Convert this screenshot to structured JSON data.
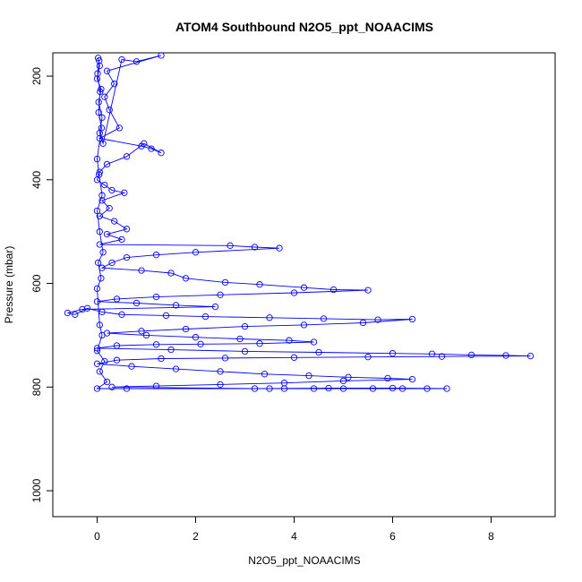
{
  "chart_data": {
    "type": "scatter",
    "title": "ATOM4 Southbound N2O5_ppt_NOAACIMS",
    "xlabel": "N2O5_ppt_NOAACIMS",
    "ylabel": "Pressure (mbar)",
    "xlim": [
      -0.9,
      9.3
    ],
    "ylim": [
      1050,
      155
    ],
    "x_ticks": [
      0,
      2,
      4,
      6,
      8
    ],
    "y_ticks": [
      200,
      400,
      600,
      800,
      1000
    ],
    "grid": false,
    "legend": "none",
    "y_reversed": true,
    "connected": true,
    "colors": {
      "series": "#0000ff",
      "axis": "#000000",
      "background": "#ffffff"
    },
    "series": [
      {
        "points": [
          [
            0.02,
            165
          ],
          [
            0.05,
            180
          ],
          [
            0.0,
            205
          ],
          [
            0.08,
            225
          ],
          [
            0.03,
            250
          ],
          [
            0.1,
            280
          ],
          [
            0.05,
            310
          ],
          [
            0.12,
            330
          ],
          [
            0.5,
            168
          ],
          [
            0.8,
            172
          ],
          [
            1.3,
            160
          ],
          [
            0.2,
            190
          ],
          [
            0.35,
            215
          ],
          [
            0.15,
            240
          ],
          [
            0.25,
            265
          ],
          [
            0.45,
            300
          ],
          [
            0.05,
            320
          ],
          [
            0.9,
            335
          ],
          [
            1.1,
            340
          ],
          [
            1.3,
            348
          ],
          [
            0.95,
            330
          ],
          [
            0.6,
            355
          ],
          [
            0.2,
            370
          ],
          [
            0.05,
            385
          ],
          [
            0.0,
            400
          ],
          [
            0.15,
            410
          ],
          [
            0.3,
            420
          ],
          [
            0.55,
            425
          ],
          [
            0.1,
            440
          ],
          [
            0.25,
            455
          ],
          [
            0.05,
            470
          ],
          [
            0.35,
            480
          ],
          [
            0.6,
            495
          ],
          [
            0.2,
            505
          ],
          [
            0.5,
            515
          ],
          [
            0.05,
            525
          ],
          [
            2.7,
            527
          ],
          [
            3.2,
            530
          ],
          [
            3.7,
            532
          ],
          [
            2.0,
            540
          ],
          [
            1.2,
            545
          ],
          [
            0.6,
            550
          ],
          [
            0.3,
            560
          ],
          [
            0.1,
            570
          ],
          [
            0.9,
            575
          ],
          [
            1.5,
            580
          ],
          [
            1.8,
            590
          ],
          [
            2.6,
            598
          ],
          [
            3.3,
            602
          ],
          [
            4.2,
            608
          ],
          [
            4.8,
            612
          ],
          [
            5.5,
            613
          ],
          [
            4.0,
            618
          ],
          [
            2.5,
            622
          ],
          [
            1.2,
            626
          ],
          [
            0.4,
            630
          ],
          [
            0.0,
            635
          ],
          [
            0.8,
            638
          ],
          [
            1.6,
            642
          ],
          [
            2.4,
            645
          ],
          [
            -0.3,
            650
          ],
          [
            -0.6,
            657
          ],
          [
            -0.45,
            660
          ],
          [
            -0.2,
            648
          ],
          [
            0.1,
            655
          ],
          [
            0.5,
            660
          ],
          [
            1.4,
            662
          ],
          [
            2.2,
            664
          ],
          [
            3.5,
            666
          ],
          [
            4.6,
            668
          ],
          [
            5.7,
            670
          ],
          [
            6.4,
            669
          ],
          [
            5.4,
            676
          ],
          [
            4.2,
            680
          ],
          [
            3.0,
            683
          ],
          [
            1.8,
            688
          ],
          [
            0.9,
            692
          ],
          [
            0.2,
            696
          ],
          [
            1.0,
            700
          ],
          [
            2.0,
            704
          ],
          [
            2.9,
            707
          ],
          [
            3.9,
            710
          ],
          [
            4.4,
            713
          ],
          [
            3.3,
            716
          ],
          [
            2.1,
            717
          ],
          [
            1.2,
            718
          ],
          [
            0.4,
            720
          ],
          [
            0.0,
            725
          ],
          [
            1.5,
            728
          ],
          [
            3.0,
            731
          ],
          [
            4.5,
            733
          ],
          [
            6.0,
            735
          ],
          [
            6.8,
            736
          ],
          [
            7.6,
            738
          ],
          [
            8.3,
            739
          ],
          [
            8.8,
            740
          ],
          [
            7.0,
            741
          ],
          [
            5.5,
            742
          ],
          [
            4.0,
            743
          ],
          [
            2.6,
            744
          ],
          [
            1.3,
            745
          ],
          [
            0.4,
            748
          ],
          [
            0.0,
            755
          ],
          [
            0.7,
            760
          ],
          [
            1.6,
            765
          ],
          [
            2.5,
            770
          ],
          [
            3.4,
            775
          ],
          [
            4.3,
            778
          ],
          [
            5.1,
            781
          ],
          [
            5.9,
            783
          ],
          [
            6.4,
            785
          ],
          [
            5.0,
            788
          ],
          [
            3.8,
            792
          ],
          [
            2.5,
            795
          ],
          [
            1.2,
            798
          ],
          [
            0.3,
            800
          ],
          [
            3.2,
            803
          ],
          [
            3.8,
            803
          ],
          [
            4.4,
            803
          ],
          [
            5.0,
            803
          ],
          [
            5.6,
            803
          ],
          [
            6.2,
            803
          ],
          [
            6.7,
            803
          ],
          [
            7.1,
            803
          ],
          [
            6.0,
            802
          ],
          [
            4.7,
            802
          ],
          [
            3.5,
            803
          ],
          [
            0.6,
            803
          ],
          [
            0.0,
            803
          ],
          [
            0.2,
            790
          ],
          [
            0.05,
            770
          ],
          [
            0.15,
            750
          ],
          [
            0.0,
            730
          ],
          [
            0.1,
            700
          ],
          [
            0.05,
            680
          ],
          [
            0.0,
            610
          ],
          [
            0.08,
            590
          ],
          [
            0.02,
            560
          ],
          [
            0.12,
            540
          ],
          [
            0.05,
            500
          ],
          [
            0.0,
            460
          ],
          [
            0.1,
            430
          ],
          [
            0.04,
            390
          ],
          [
            0.0,
            360
          ],
          [
            0.09,
            300
          ],
          [
            0.03,
            270
          ],
          [
            0.06,
            230
          ],
          [
            0.01,
            195
          ],
          [
            0.04,
            170
          ]
        ]
      }
    ]
  }
}
